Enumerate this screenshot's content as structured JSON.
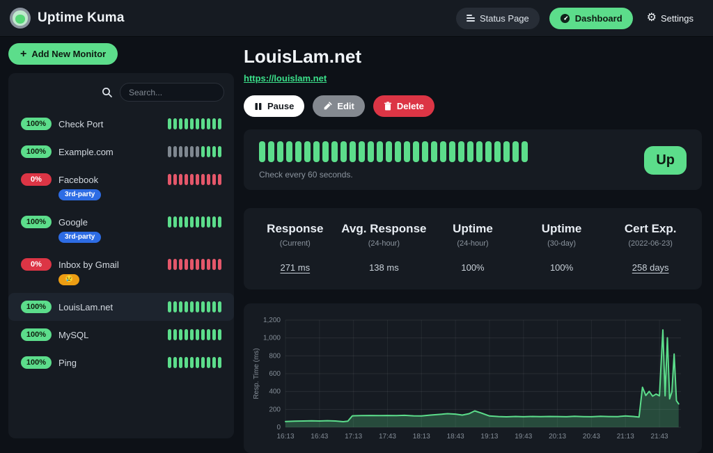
{
  "colors": {
    "accent_green": "#5cdd8b",
    "status_red": "#dc3545",
    "beat_up": "#5cdd8b",
    "beat_down": "#e4576a",
    "beat_empty": "#7f8790",
    "panel_bg": "#161b22",
    "page_bg": "#0d1117"
  },
  "header": {
    "app_title": "Uptime Kuma",
    "nav": {
      "status_page": "Status Page",
      "dashboard": "Dashboard",
      "settings": "Settings"
    }
  },
  "sidebar": {
    "add_monitor_label": "Add New Monitor",
    "search_placeholder": "Search...",
    "beat_legend": {
      "u": "up",
      "d": "down",
      "e": "empty"
    },
    "monitors": [
      {
        "uptime": "100%",
        "status": "up",
        "name": "Check Port",
        "tags": [],
        "beats": "uuuuuuuuuu",
        "selected": false
      },
      {
        "uptime": "100%",
        "status": "up",
        "name": "Example.com",
        "tags": [],
        "beats": "eeeeeeuuuu",
        "selected": false
      },
      {
        "uptime": "0%",
        "status": "down",
        "name": "Facebook",
        "tags": [
          {
            "label": "3rd-party",
            "color": "#2d6ce4"
          }
        ],
        "beats": "dddddddddd",
        "selected": false
      },
      {
        "uptime": "100%",
        "status": "up",
        "name": "Google",
        "tags": [
          {
            "label": "3rd-party",
            "color": "#2d6ce4"
          }
        ],
        "beats": "uuuuuuuuuu",
        "selected": false
      },
      {
        "uptime": "0%",
        "status": "down",
        "name": "Inbox by Gmail",
        "tags": [
          {
            "label": "😢",
            "color": "#ec9d13"
          }
        ],
        "beats": "dddddddddd",
        "selected": false
      },
      {
        "uptime": "100%",
        "status": "up",
        "name": "LouisLam.net",
        "tags": [],
        "beats": "uuuuuuuuuu",
        "selected": true
      },
      {
        "uptime": "100%",
        "status": "up",
        "name": "MySQL",
        "tags": [],
        "beats": "uuuuuuuuuu",
        "selected": false
      },
      {
        "uptime": "100%",
        "status": "up",
        "name": "Ping",
        "tags": [],
        "beats": "uuuuuuuuuu",
        "selected": false
      }
    ]
  },
  "main": {
    "title": "LouisLam.net",
    "url": "https://louislam.net",
    "buttons": {
      "pause": "Pause",
      "edit": "Edit",
      "delete": "Delete"
    },
    "heartbeat": {
      "beats_count": 30,
      "beats_status": "up",
      "note": "Check every 60 seconds.",
      "badge": "Up"
    },
    "stats": [
      {
        "label": "Response",
        "sub": "(Current)",
        "value": "271 ms",
        "underline": true
      },
      {
        "label": "Avg. Response",
        "sub": "(24-hour)",
        "value": "138 ms",
        "underline": false
      },
      {
        "label": "Uptime",
        "sub": "(24-hour)",
        "value": "100%",
        "underline": false
      },
      {
        "label": "Uptime",
        "sub": "(30-day)",
        "value": "100%",
        "underline": false
      },
      {
        "label": "Cert Exp.",
        "sub": "(2022-06-23)",
        "value": "258 days",
        "underline": true
      }
    ]
  },
  "chart_data": {
    "type": "area",
    "title": "",
    "xlabel": "",
    "ylabel": "Resp. Time (ms)",
    "ylim": [
      0,
      1200
    ],
    "y_ticks": [
      0,
      200,
      400,
      600,
      800,
      1000,
      1200
    ],
    "x_ticks": [
      "16:13",
      "16:43",
      "17:13",
      "17:43",
      "18:13",
      "18:43",
      "19:13",
      "19:43",
      "20:13",
      "20:43",
      "21:13",
      "21:43"
    ],
    "x_range": [
      "16:13",
      "22:02"
    ],
    "grid": true,
    "legend_position": "none",
    "line_color": "#5cdd8b",
    "fill_color": "rgba(92,221,139,0.25)",
    "series": [
      {
        "name": "Resp. Time (ms)",
        "points": [
          [
            "16:13",
            65
          ],
          [
            "16:21",
            68
          ],
          [
            "16:29",
            70
          ],
          [
            "16:36",
            72
          ],
          [
            "16:43",
            70
          ],
          [
            "16:50",
            73
          ],
          [
            "16:57",
            70
          ],
          [
            "17:04",
            62
          ],
          [
            "17:08",
            68
          ],
          [
            "17:12",
            128
          ],
          [
            "17:20",
            130
          ],
          [
            "17:28",
            132
          ],
          [
            "17:36",
            130
          ],
          [
            "17:43",
            132
          ],
          [
            "17:51",
            130
          ],
          [
            "17:58",
            133
          ],
          [
            "18:06",
            128
          ],
          [
            "18:13",
            127
          ],
          [
            "18:21",
            136
          ],
          [
            "18:28",
            143
          ],
          [
            "18:36",
            152
          ],
          [
            "18:43",
            147
          ],
          [
            "18:49",
            136
          ],
          [
            "18:55",
            152
          ],
          [
            "19:00",
            183
          ],
          [
            "19:06",
            158
          ],
          [
            "19:13",
            126
          ],
          [
            "19:21",
            120
          ],
          [
            "19:28",
            117
          ],
          [
            "19:36",
            121
          ],
          [
            "19:43",
            118
          ],
          [
            "19:51",
            121
          ],
          [
            "19:58",
            119
          ],
          [
            "20:06",
            121
          ],
          [
            "20:13",
            120
          ],
          [
            "20:21",
            118
          ],
          [
            "20:28",
            122
          ],
          [
            "20:36",
            119
          ],
          [
            "20:43",
            118
          ],
          [
            "20:51",
            122
          ],
          [
            "20:58",
            120
          ],
          [
            "21:06",
            119
          ],
          [
            "21:13",
            126
          ],
          [
            "21:20",
            121
          ],
          [
            "21:25",
            114
          ],
          [
            "21:28",
            448
          ],
          [
            "21:31",
            355
          ],
          [
            "21:34",
            402
          ],
          [
            "21:37",
            348
          ],
          [
            "21:40",
            372
          ],
          [
            "21:43",
            352
          ],
          [
            "21:46",
            1090
          ],
          [
            "21:48",
            352
          ],
          [
            "21:50",
            1002
          ],
          [
            "21:52",
            318
          ],
          [
            "21:54",
            398
          ],
          [
            "21:56",
            820
          ],
          [
            "21:58",
            298
          ],
          [
            "22:00",
            262
          ]
        ]
      }
    ]
  }
}
